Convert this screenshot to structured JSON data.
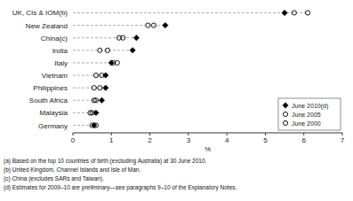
{
  "chart_data": {
    "type": "scatter",
    "orientation": "horizontal",
    "categories": [
      "Germany",
      "Malaysia",
      "South Africa",
      "Philippines",
      "Vietnam",
      "Italy",
      "India",
      "China(c)",
      "New Zealand",
      "UK, CIs & IOM(b)"
    ],
    "series": [
      {
        "name": "June 2010(d)",
        "color": "black",
        "marker": "diamond",
        "values": [
          0.55,
          0.6,
          0.75,
          0.85,
          0.85,
          1.0,
          1.55,
          1.65,
          2.4,
          5.5
        ]
      },
      {
        "name": "June 2005",
        "color": "black",
        "marker": "open-circle",
        "values": [
          0.5,
          0.5,
          0.6,
          0.7,
          0.75,
          1.05,
          0.9,
          1.3,
          2.1,
          5.75
        ]
      },
      {
        "name": "June 2000",
        "color": "black",
        "marker": "open-circle",
        "values": [
          0.6,
          0.45,
          0.55,
          0.55,
          0.6,
          1.15,
          0.7,
          1.2,
          1.95,
          6.1
        ]
      }
    ],
    "xlim": [
      0,
      7
    ],
    "xticks": [
      0,
      1,
      2,
      3,
      4,
      5,
      6,
      7
    ],
    "xlabel": "%",
    "legend": "lower right",
    "grid": false,
    "annotations": [
      "(a) Based on the top 10 countries of birth (excluding Australia) at 30 June 2010.",
      "(b) United Kingdom, Channel Islands and Isle of Man.",
      "(c) China (excludes SARs and Taiwan).",
      "(d) Estimates for 2009–10 are preliminary—see paragraphs 9–10 of the Explanatory Notes."
    ]
  }
}
